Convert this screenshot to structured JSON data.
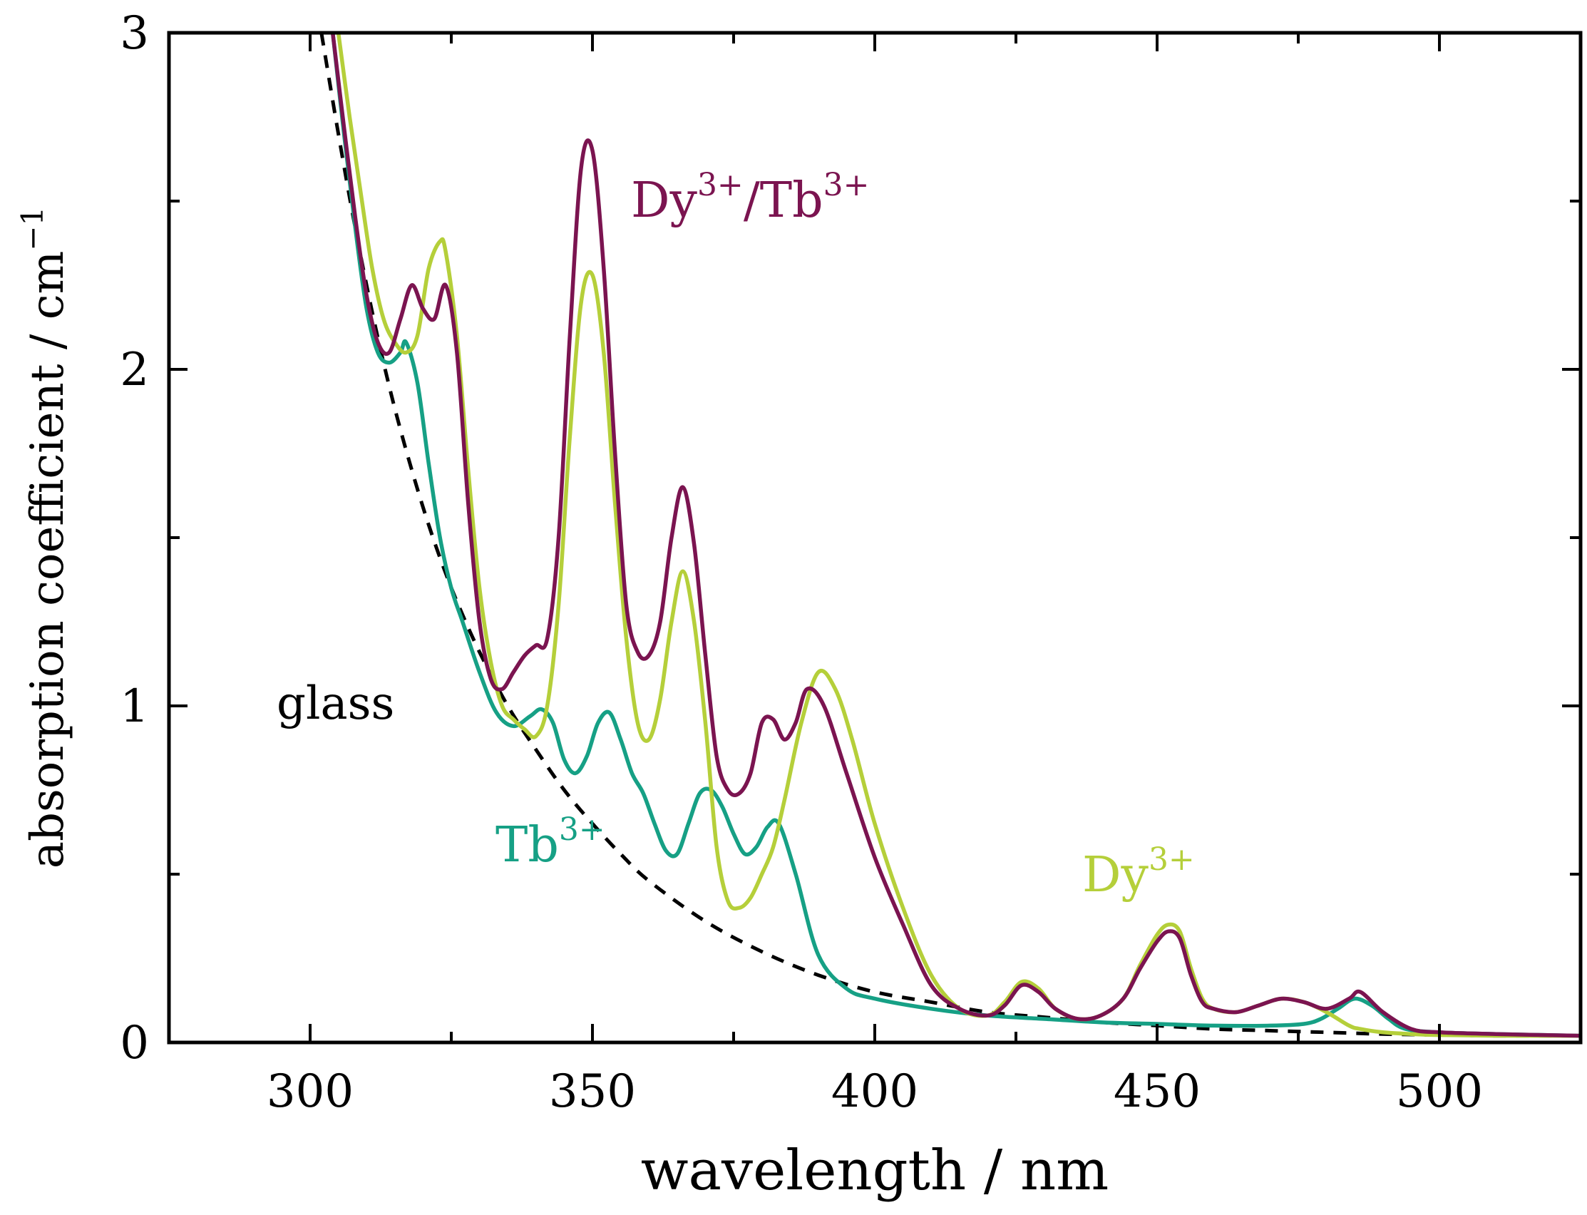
{
  "chart_data": {
    "type": "line",
    "xlabel": "wavelength / nm",
    "ylabel_text": "absorption coefficient / cm",
    "ylabel_superscript": "−1",
    "xlim": [
      275,
      525
    ],
    "ylim": [
      0,
      3
    ],
    "x_ticks": [
      300,
      350,
      400,
      450,
      500
    ],
    "x_tick_labels": [
      "300",
      "350",
      "400",
      "450",
      "500"
    ],
    "y_ticks": [
      0,
      1,
      2,
      3
    ],
    "y_tick_labels": [
      "0",
      "1",
      "2",
      "3"
    ],
    "y_minor_ticks": [
      0.5,
      1.5,
      2.5
    ],
    "x_minor_ticks": [
      325,
      375,
      425,
      475
    ],
    "grid": false,
    "series": [
      {
        "name": "glass",
        "label_base": "glass",
        "label_sup": "",
        "color": "#000000",
        "dashed": true,
        "x": [
          302,
          305,
          308,
          311,
          314,
          317,
          320,
          323,
          326,
          330,
          335,
          340,
          345,
          350,
          355,
          360,
          370,
          380,
          390,
          400,
          410,
          420,
          430,
          440,
          450,
          460,
          470,
          480,
          490,
          500,
          510,
          525
        ],
        "y": [
          3.0,
          2.7,
          2.42,
          2.17,
          1.95,
          1.76,
          1.59,
          1.44,
          1.31,
          1.16,
          1.0,
          0.87,
          0.75,
          0.65,
          0.56,
          0.48,
          0.36,
          0.27,
          0.2,
          0.15,
          0.12,
          0.09,
          0.075,
          0.06,
          0.05,
          0.04,
          0.035,
          0.03,
          0.025,
          0.022,
          0.02,
          0.02
        ]
      },
      {
        "name": "Tb3+",
        "label_base": "Tb",
        "label_sup": "3+",
        "color": "#16a085",
        "dashed": false,
        "x": [
          304,
          306,
          308,
          310,
          312,
          314,
          316,
          317,
          319,
          321,
          323,
          325,
          327,
          330,
          333,
          336,
          339,
          341,
          343,
          345,
          347,
          349,
          351,
          353,
          355,
          357,
          359,
          361,
          363,
          365,
          367,
          369,
          371,
          373,
          375,
          377,
          379,
          381,
          383,
          386,
          390,
          395,
          400,
          410,
          420,
          430,
          440,
          450,
          460,
          470,
          476,
          479,
          482,
          485,
          488,
          491,
          494,
          500,
          510,
          525
        ],
        "y": [
          3.0,
          2.7,
          2.42,
          2.18,
          2.05,
          2.02,
          2.05,
          2.08,
          1.96,
          1.72,
          1.5,
          1.35,
          1.25,
          1.1,
          0.98,
          0.94,
          0.97,
          0.99,
          0.95,
          0.84,
          0.8,
          0.85,
          0.95,
          0.98,
          0.9,
          0.8,
          0.74,
          0.65,
          0.57,
          0.56,
          0.65,
          0.74,
          0.75,
          0.7,
          0.62,
          0.56,
          0.58,
          0.64,
          0.65,
          0.5,
          0.26,
          0.16,
          0.13,
          0.1,
          0.08,
          0.07,
          0.06,
          0.055,
          0.05,
          0.05,
          0.055,
          0.07,
          0.1,
          0.13,
          0.11,
          0.07,
          0.04,
          0.03,
          0.025,
          0.02
        ]
      },
      {
        "name": "Dy3+",
        "label_base": "Dy",
        "label_sup": "3+",
        "color": "#b5cf3a",
        "dashed": false,
        "x": [
          305,
          307,
          309,
          311,
          313,
          315,
          317,
          319,
          321,
          323,
          324,
          326,
          328,
          330,
          332,
          334,
          336,
          338,
          340,
          342,
          344,
          346,
          348,
          350,
          352,
          354,
          356,
          358,
          360,
          362,
          364,
          366,
          368,
          370,
          372,
          374,
          376,
          378,
          380,
          382,
          384,
          387,
          390,
          393,
          396,
          400,
          405,
          410,
          415,
          420,
          423,
          426,
          429,
          432,
          436,
          440,
          444,
          447,
          450,
          452,
          454,
          456,
          458,
          460,
          464,
          468,
          472,
          476,
          480,
          484,
          486,
          490,
          495,
          500,
          510,
          525
        ],
        "y": [
          3.0,
          2.75,
          2.52,
          2.3,
          2.15,
          2.08,
          2.05,
          2.1,
          2.3,
          2.38,
          2.35,
          2.1,
          1.7,
          1.35,
          1.13,
          1.0,
          0.96,
          0.93,
          0.91,
          1.0,
          1.3,
          1.8,
          2.2,
          2.28,
          2.05,
          1.6,
          1.2,
          0.95,
          0.9,
          1.02,
          1.25,
          1.4,
          1.25,
          0.95,
          0.58,
          0.42,
          0.4,
          0.43,
          0.5,
          0.58,
          0.72,
          0.95,
          1.1,
          1.05,
          0.9,
          0.65,
          0.4,
          0.2,
          0.1,
          0.08,
          0.12,
          0.18,
          0.16,
          0.1,
          0.07,
          0.08,
          0.13,
          0.23,
          0.32,
          0.35,
          0.33,
          0.22,
          0.13,
          0.1,
          0.09,
          0.11,
          0.13,
          0.12,
          0.09,
          0.05,
          0.04,
          0.03,
          0.025,
          0.022,
          0.02,
          0.02
        ]
      },
      {
        "name": "Dy3+/Tb3+",
        "label_base": "Dy",
        "label_sup": "3+",
        "label_base2": "/Tb",
        "label_sup2": "3+",
        "color": "#7b1450",
        "dashed": false,
        "x": [
          304,
          306,
          308,
          310,
          312,
          314,
          316,
          318,
          320,
          322,
          324,
          326,
          328,
          330,
          332,
          334,
          336,
          338,
          340,
          342,
          344,
          346,
          348,
          350,
          352,
          354,
          356,
          358,
          360,
          362,
          364,
          366,
          368,
          370,
          372,
          374,
          376,
          378,
          380,
          382,
          384,
          386,
          388,
          391,
          395,
          400,
          405,
          410,
          415,
          420,
          423,
          426,
          429,
          432,
          436,
          440,
          444,
          447,
          450,
          452,
          454,
          456,
          458,
          460,
          464,
          468,
          472,
          476,
          480,
          484,
          486,
          490,
          495,
          500,
          510,
          525
        ],
        "y": [
          3.0,
          2.72,
          2.45,
          2.22,
          2.08,
          2.05,
          2.15,
          2.25,
          2.18,
          2.15,
          2.25,
          2.05,
          1.6,
          1.25,
          1.08,
          1.05,
          1.1,
          1.15,
          1.18,
          1.2,
          1.5,
          2.1,
          2.6,
          2.65,
          2.3,
          1.75,
          1.3,
          1.16,
          1.15,
          1.25,
          1.5,
          1.65,
          1.48,
          1.15,
          0.85,
          0.75,
          0.74,
          0.8,
          0.95,
          0.96,
          0.9,
          0.95,
          1.05,
          1.0,
          0.8,
          0.55,
          0.35,
          0.17,
          0.1,
          0.08,
          0.11,
          0.17,
          0.15,
          0.1,
          0.07,
          0.08,
          0.13,
          0.22,
          0.3,
          0.33,
          0.31,
          0.2,
          0.12,
          0.1,
          0.09,
          0.11,
          0.13,
          0.12,
          0.1,
          0.13,
          0.15,
          0.09,
          0.04,
          0.03,
          0.025,
          0.02
        ]
      }
    ]
  }
}
